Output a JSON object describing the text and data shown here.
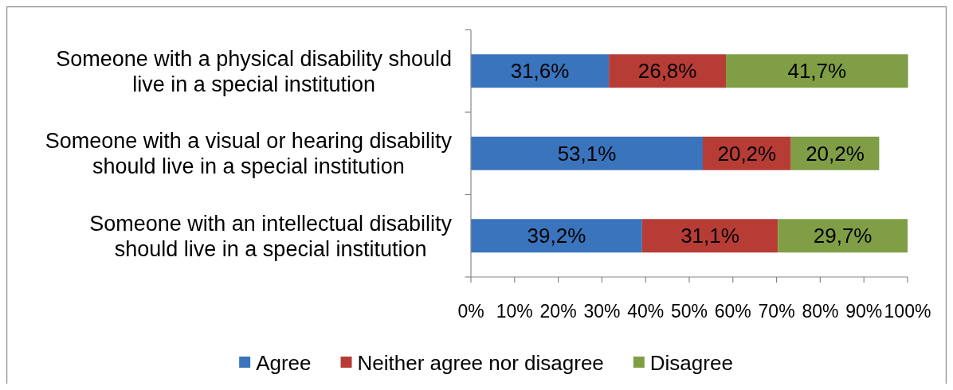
{
  "chart_data": {
    "type": "bar",
    "orientation": "horizontal",
    "stacked": true,
    "categories": [
      "Someone with a physical disability should live in a special institution",
      "Someone with a visual or hearing disability should live in a special institution",
      "Someone with an intellectual disability should live in a special institution"
    ],
    "series": [
      {
        "name": "Agree",
        "color": "#3a74bd",
        "values": [
          31.6,
          53.1,
          39.2
        ],
        "value_labels": [
          "31,6%",
          "53,1%",
          "39,2%"
        ]
      },
      {
        "name": "Neither agree nor disagree",
        "color": "#b83c36",
        "values": [
          26.8,
          20.2,
          31.1
        ],
        "value_labels": [
          "26,8%",
          "20,2%",
          "31,1%"
        ]
      },
      {
        "name": "Disagree",
        "color": "#7f9e45",
        "values": [
          41.7,
          20.2,
          29.7
        ],
        "value_labels": [
          "41,7%",
          "20,2%",
          "29,7%"
        ]
      }
    ],
    "xlim": [
      0,
      100
    ],
    "xticks": [
      {
        "value": 0,
        "label": "0%"
      },
      {
        "value": 10,
        "label": "10%"
      },
      {
        "value": 20,
        "label": "20%"
      },
      {
        "value": 30,
        "label": "30%"
      },
      {
        "value": 40,
        "label": "40%"
      },
      {
        "value": 50,
        "label": "50%"
      },
      {
        "value": 60,
        "label": "60%"
      },
      {
        "value": 70,
        "label": "70%"
      },
      {
        "value": 80,
        "label": "80%"
      },
      {
        "value": 90,
        "label": "90%"
      },
      {
        "value": 100,
        "label": "100%"
      }
    ],
    "legend": "bottom"
  }
}
